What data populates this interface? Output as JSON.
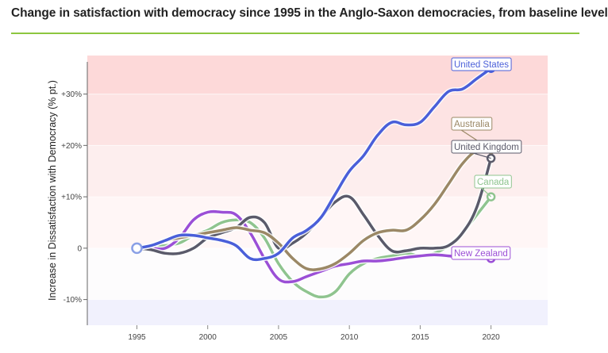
{
  "title": "Change in satisfaction with democracy since 1995 in the Anglo-Saxon democracies, from baseline level",
  "accent_color": "#8cc63f",
  "chart_data": {
    "type": "line",
    "title": "Change in satisfaction with democracy since 1995 in the Anglo-Saxon democracies, from baseline level",
    "xlabel": "",
    "ylabel": "Increase in Dissatisfaction with Democracy (% pt.)",
    "xlim": [
      1991.5,
      2024
    ],
    "ylim": [
      -15,
      37.5
    ],
    "x_ticks": [
      1995,
      2000,
      2005,
      2010,
      2015,
      2020
    ],
    "y_ticks": [
      {
        "value": 30,
        "label": "+30%"
      },
      {
        "value": 20,
        "label": "+20%"
      },
      {
        "value": 10,
        "label": "+10%"
      },
      {
        "value": 0,
        "label": "0"
      },
      {
        "value": -10,
        "label": "-10%"
      }
    ],
    "bands": [
      {
        "from": 30,
        "to": 37.5,
        "color": "#fdd9d9"
      },
      {
        "from": 20,
        "to": 30,
        "color": "#fde3e3"
      },
      {
        "from": 10,
        "to": 20,
        "color": "#fdeeee"
      },
      {
        "from": 0,
        "to": 10,
        "color": "#fff6f6"
      },
      {
        "from": -10,
        "to": 0,
        "color": "#fdfcfd"
      },
      {
        "from": -15,
        "to": -10,
        "color": "#f1f1fd"
      }
    ],
    "series": [
      {
        "name": "Canada",
        "color": "#8fc48f",
        "x": [
          1995,
          1996,
          1997,
          1998,
          1999,
          2000,
          2001,
          2002,
          2003,
          2004,
          2005,
          2006,
          2007,
          2008,
          2009,
          2010,
          2011,
          2012,
          2013,
          2014,
          2015,
          2016,
          2017,
          2018,
          2019,
          2020
        ],
        "y": [
          0,
          0.3,
          0.5,
          1,
          2.5,
          3.5,
          5,
          5.5,
          5,
          2,
          -3,
          -6.5,
          -8.5,
          -9.5,
          -8.5,
          -5,
          -3,
          -2,
          -1.5,
          -1,
          -1.5,
          -1,
          0.5,
          3,
          6.5,
          10
        ]
      },
      {
        "name": "New Zealand",
        "color": "#9b4fd6",
        "x": [
          1995,
          1996,
          1997,
          1998,
          1999,
          2000,
          2001,
          2002,
          2003,
          2004,
          2005,
          2006,
          2007,
          2008,
          2009,
          2010,
          2011,
          2012,
          2013,
          2014,
          2015,
          2016,
          2017,
          2018,
          2019,
          2020
        ],
        "y": [
          0,
          0,
          0,
          2,
          5.5,
          7,
          7,
          6.5,
          3,
          -2,
          -6,
          -6.5,
          -5.5,
          -4.5,
          -3.5,
          -3,
          -2.5,
          -2.5,
          -2.2,
          -1.8,
          -1.5,
          -1.3,
          -1.5,
          -1.8,
          -2,
          -2
        ]
      },
      {
        "name": "United Kingdom",
        "color": "#5a5a6a",
        "x": [
          1995,
          1996,
          1997,
          1998,
          1999,
          2000,
          2001,
          2002,
          2003,
          2004,
          2005,
          2006,
          2007,
          2008,
          2009,
          2010,
          2011,
          2012,
          2013,
          2014,
          2015,
          2016,
          2017,
          2018,
          2019,
          2020
        ],
        "y": [
          0,
          -0.3,
          -1,
          -1,
          0,
          2,
          3,
          4,
          6,
          5,
          0,
          1,
          3,
          6,
          9,
          10,
          6.5,
          2.5,
          -0.5,
          -0.5,
          0,
          0,
          0.5,
          3,
          8,
          17.5
        ]
      },
      {
        "name": "Australia",
        "color": "#9b8866",
        "x": [
          1995,
          1996,
          1997,
          1998,
          1999,
          2000,
          2001,
          2002,
          2003,
          2004,
          2005,
          2006,
          2007,
          2008,
          2009,
          2010,
          2011,
          2012,
          2013,
          2014,
          2015,
          2016,
          2017,
          2018,
          2019,
          2020
        ],
        "y": [
          0,
          0.5,
          1.5,
          2,
          2.5,
          3,
          3.5,
          4,
          3.5,
          3,
          1,
          -2,
          -4,
          -4,
          -3,
          -1,
          1.5,
          3,
          3.5,
          3.5,
          5.5,
          8.5,
          12.5,
          16.5,
          19,
          19.2
        ]
      },
      {
        "name": "United States",
        "color": "#4a5fd9",
        "x": [
          1995,
          1996,
          1997,
          1998,
          1999,
          2000,
          2001,
          2002,
          2003,
          2004,
          2005,
          2006,
          2007,
          2008,
          2009,
          2010,
          2011,
          2012,
          2013,
          2014,
          2015,
          2016,
          2017,
          2018,
          2019,
          2020
        ],
        "y": [
          0,
          0.5,
          1.5,
          2.5,
          2.5,
          2,
          1.5,
          0.5,
          -2,
          -2,
          -1,
          2,
          3.5,
          6,
          10.5,
          15,
          18,
          22,
          24.5,
          24,
          24.5,
          27.5,
          30.5,
          31,
          33,
          35
        ]
      }
    ],
    "labels": [
      {
        "series": "United States",
        "text": "United States"
      },
      {
        "series": "Australia",
        "text": "Australia"
      },
      {
        "series": "United Kingdom",
        "text": "United Kingdom"
      },
      {
        "series": "Canada",
        "text": "Canada"
      },
      {
        "series": "New Zealand",
        "text": "New Zealand"
      }
    ],
    "baseline_marker": {
      "x": 1995,
      "y": 0,
      "color": "#8aa0e6"
    }
  }
}
